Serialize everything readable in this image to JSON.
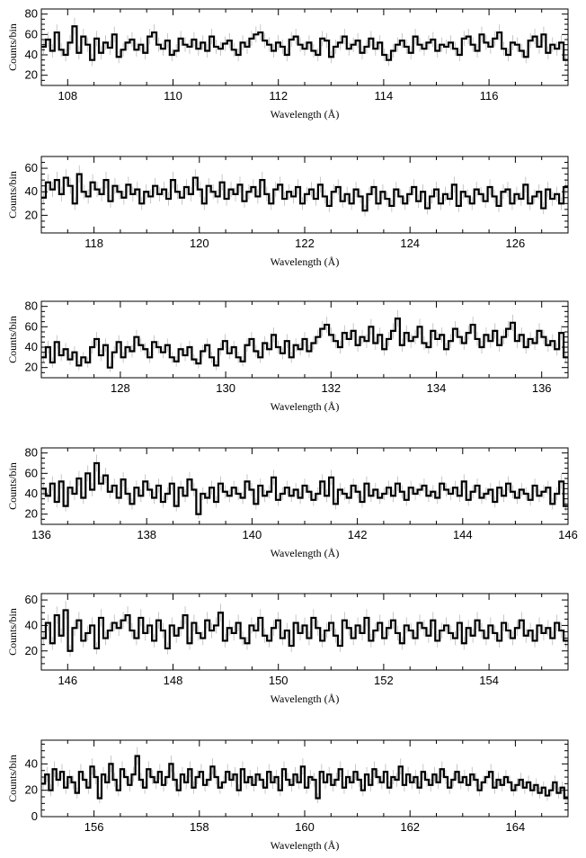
{
  "chart_data": [
    {
      "type": "line",
      "style": "step-histogram-with-error-bars",
      "xlabel": "Wavelength (Å)",
      "ylabel": "Counts/bin",
      "xlim": [
        107.5,
        117.5
      ],
      "ylim": [
        10,
        85
      ],
      "x_ticks": [
        108,
        110,
        112,
        114,
        116
      ],
      "y_ticks": [
        20,
        40,
        60,
        80
      ],
      "grid": false,
      "series": [
        {
          "values": [
            48,
            55,
            44,
            62,
            45,
            40,
            52,
            68,
            42,
            58,
            50,
            35,
            56,
            42,
            52,
            47,
            60,
            38,
            45,
            52,
            55,
            45,
            50,
            42,
            58,
            62,
            50,
            46,
            54,
            40,
            44,
            56,
            50,
            48,
            55,
            46,
            52,
            44,
            58,
            48,
            46,
            51,
            54,
            45,
            40,
            52,
            48,
            56,
            60,
            62,
            54,
            50,
            44,
            52,
            48,
            40,
            55,
            58,
            50,
            46,
            52,
            44,
            40,
            56,
            54,
            38,
            48,
            52,
            58,
            46,
            50,
            54,
            42,
            48,
            56,
            46,
            52,
            40,
            35,
            44,
            50,
            54,
            48,
            42,
            58,
            50,
            46,
            52,
            55,
            44,
            50,
            48,
            52,
            46,
            40,
            56,
            58,
            50,
            44,
            60,
            52,
            48,
            56,
            62,
            46,
            40,
            52,
            50,
            44,
            38,
            54,
            58,
            48,
            60,
            42,
            50,
            46,
            52,
            35
          ]
        }
      ]
    },
    {
      "type": "line",
      "style": "step-histogram-with-error-bars",
      "xlabel": "Wavelength (Å)",
      "ylabel": "Counts/bin",
      "xlim": [
        117.0,
        127.0
      ],
      "ylim": [
        5,
        70
      ],
      "x_ticks": [
        118,
        120,
        122,
        124,
        126
      ],
      "y_ticks": [
        20,
        40,
        60
      ],
      "grid": false,
      "series": [
        {
          "values": [
            35,
            48,
            42,
            50,
            38,
            52,
            45,
            30,
            55,
            40,
            36,
            48,
            42,
            38,
            50,
            32,
            45,
            40,
            35,
            46,
            38,
            42,
            30,
            40,
            36,
            45,
            38,
            42,
            34,
            50,
            40,
            35,
            44,
            38,
            52,
            42,
            30,
            45,
            40,
            36,
            48,
            34,
            42,
            38,
            46,
            32,
            40,
            44,
            36,
            50,
            38,
            30,
            42,
            46,
            34,
            40,
            36,
            44,
            30,
            38,
            42,
            34,
            46,
            36,
            28,
            40,
            44,
            32,
            38,
            30,
            42,
            36,
            24,
            38,
            44,
            30,
            40,
            34,
            28,
            42,
            36,
            30,
            38,
            44,
            32,
            40,
            26,
            36,
            42,
            30,
            38,
            34,
            46,
            28,
            40,
            36,
            30,
            42,
            38,
            32,
            44,
            36,
            28,
            40,
            42,
            30,
            38,
            34,
            46,
            30,
            36,
            40,
            26,
            42,
            34,
            38,
            30,
            44
          ]
        }
      ]
    },
    {
      "type": "line",
      "style": "step-histogram-with-error-bars",
      "xlabel": "Wavelength (Å)",
      "ylabel": "Counts/bin",
      "xlim": [
        126.5,
        136.5
      ],
      "ylim": [
        10,
        85
      ],
      "x_ticks": [
        128,
        130,
        132,
        134,
        136
      ],
      "y_ticks": [
        20,
        40,
        60,
        80
      ],
      "grid": false,
      "series": [
        {
          "values": [
            30,
            40,
            25,
            45,
            32,
            38,
            28,
            35,
            22,
            30,
            25,
            40,
            48,
            32,
            42,
            20,
            35,
            45,
            30,
            40,
            36,
            50,
            42,
            38,
            30,
            45,
            40,
            35,
            42,
            30,
            26,
            38,
            32,
            40,
            28,
            24,
            36,
            42,
            30,
            22,
            38,
            46,
            34,
            40,
            30,
            26,
            42,
            48,
            36,
            30,
            44,
            38,
            52,
            40,
            34,
            46,
            30,
            42,
            38,
            48,
            36,
            44,
            50,
            58,
            62,
            52,
            46,
            40,
            54,
            48,
            56,
            42,
            50,
            46,
            60,
            44,
            52,
            38,
            48,
            56,
            68,
            42,
            54,
            46,
            50,
            60,
            44,
            40,
            56,
            48,
            52,
            38,
            46,
            58,
            50,
            44,
            54,
            62,
            48,
            40,
            52,
            46,
            56,
            42,
            50,
            58,
            64,
            46,
            52,
            40,
            48,
            44,
            56,
            50,
            42,
            46,
            38,
            54,
            30
          ]
        }
      ]
    },
    {
      "type": "line",
      "style": "step-histogram-with-error-bars",
      "xlabel": "Wavelength (Å)",
      "ylabel": "Counts/bin",
      "xlim": [
        136,
        146
      ],
      "ylim": [
        10,
        85
      ],
      "x_ticks": [
        136,
        138,
        140,
        142,
        144,
        146
      ],
      "y_ticks": [
        20,
        40,
        60,
        80
      ],
      "grid": false,
      "series": [
        {
          "values": [
            45,
            38,
            50,
            32,
            52,
            28,
            46,
            40,
            55,
            36,
            60,
            44,
            70,
            50,
            58,
            42,
            48,
            36,
            54,
            40,
            30,
            46,
            38,
            52,
            44,
            36,
            48,
            32,
            40,
            50,
            28,
            46,
            38,
            54,
            44,
            20,
            40,
            36,
            46,
            32,
            50,
            42,
            38,
            46,
            40,
            36,
            52,
            44,
            30,
            48,
            38,
            42,
            56,
            34,
            40,
            46,
            38,
            44,
            36,
            48,
            42,
            34,
            40,
            52,
            38,
            56,
            30,
            44,
            40,
            36,
            48,
            42,
            32,
            50,
            38,
            44,
            36,
            40,
            46,
            38,
            50,
            42,
            34,
            46,
            40,
            44,
            48,
            38,
            42,
            36,
            50,
            44,
            40,
            46,
            38,
            52,
            34,
            42,
            48,
            36,
            40,
            44,
            32,
            46,
            38,
            50,
            42,
            36,
            44,
            40,
            34,
            48,
            38,
            42,
            46,
            30,
            40,
            52,
            28
          ]
        }
      ]
    },
    {
      "type": "line",
      "style": "step-histogram-with-error-bars",
      "xlabel": "Wavelength (Å)",
      "ylabel": "Counts/bin",
      "xlim": [
        145.5,
        155.5
      ],
      "ylim": [
        5,
        65
      ],
      "x_ticks": [
        146,
        148,
        150,
        152,
        154
      ],
      "y_ticks": [
        20,
        40,
        60
      ],
      "grid": false,
      "series": [
        {
          "values": [
            30,
            42,
            26,
            48,
            32,
            52,
            20,
            38,
            44,
            28,
            34,
            40,
            22,
            46,
            30,
            36,
            42,
            38,
            44,
            48,
            36,
            30,
            46,
            34,
            40,
            28,
            44,
            36,
            22,
            40,
            32,
            38,
            48,
            26,
            42,
            34,
            30,
            44,
            36,
            40,
            50,
            28,
            38,
            34,
            42,
            30,
            26,
            40,
            36,
            46,
            32,
            28,
            38,
            44,
            30,
            36,
            24,
            42,
            34,
            40,
            30,
            46,
            38,
            28,
            36,
            42,
            32,
            24,
            44,
            38,
            30,
            40,
            34,
            46,
            28,
            36,
            42,
            30,
            38,
            44,
            34,
            26,
            40,
            36,
            30,
            42,
            38,
            32,
            44,
            28,
            36,
            40,
            34,
            30,
            42,
            26,
            38,
            32,
            44,
            36,
            30,
            40,
            34,
            28,
            42,
            36,
            30,
            38,
            44,
            32,
            36,
            28,
            40,
            34,
            38,
            30,
            42,
            36,
            28
          ]
        }
      ]
    },
    {
      "type": "line",
      "style": "step-histogram-with-error-bars",
      "xlabel": "Wavelength (Å)",
      "ylabel": "Counts/bin",
      "xlim": [
        155,
        165
      ],
      "ylim": [
        0,
        58
      ],
      "x_ticks": [
        156,
        158,
        160,
        162,
        164
      ],
      "y_ticks": [
        0,
        20,
        40
      ],
      "grid": false,
      "series": [
        {
          "values": [
            25,
            32,
            20,
            36,
            28,
            34,
            22,
            30,
            26,
            18,
            34,
            28,
            22,
            38,
            30,
            14,
            32,
            26,
            40,
            28,
            20,
            36,
            30,
            24,
            32,
            46,
            28,
            22,
            36,
            30,
            26,
            34,
            24,
            30,
            40,
            28,
            20,
            32,
            26,
            36,
            22,
            30,
            34,
            24,
            28,
            38,
            30,
            22,
            26,
            34,
            28,
            32,
            20,
            36,
            26,
            30,
            24,
            32,
            28,
            22,
            34,
            26,
            30,
            20,
            36,
            28,
            24,
            32,
            26,
            38,
            22,
            30,
            28,
            14,
            34,
            26,
            32,
            24,
            28,
            36,
            22,
            30,
            26,
            34,
            28,
            20,
            32,
            24,
            36,
            30,
            26,
            34,
            22,
            30,
            28,
            38,
            24,
            32,
            26,
            30,
            22,
            34,
            28,
            24,
            32,
            26,
            36,
            30,
            22,
            28,
            34,
            26,
            30,
            24,
            32,
            28,
            20,
            26,
            30,
            34,
            22,
            28,
            24,
            30,
            26,
            20,
            24,
            28,
            22,
            26,
            20,
            24,
            18,
            22,
            16,
            20,
            26,
            18,
            22,
            14
          ]
        }
      ]
    }
  ]
}
